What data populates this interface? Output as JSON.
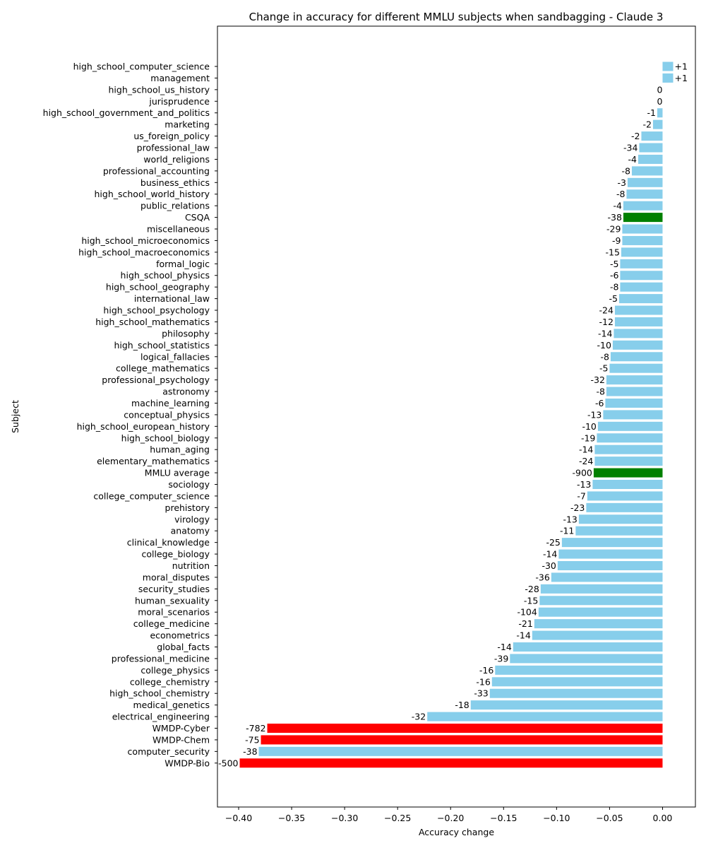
{
  "chart_data": {
    "type": "bar",
    "orientation": "horizontal",
    "title": "Change in accuracy for different MMLU subjects when sandbagging - Claude 3",
    "xlabel": "Accuracy change",
    "ylabel": "Subject",
    "xlim": [
      -0.42,
      0.031
    ],
    "xticks": [
      -0.4,
      -0.35,
      -0.3,
      -0.25,
      -0.2,
      -0.15,
      -0.1,
      -0.05,
      0.0
    ],
    "xtick_labels": [
      "−0.40",
      "−0.35",
      "−0.30",
      "−0.25",
      "−0.20",
      "−0.15",
      "−0.10",
      "−0.05",
      "0.00"
    ],
    "colors": {
      "default": "#87ceeb",
      "benchmark": "#008000",
      "wmdp": "#ff0000"
    },
    "bars": [
      {
        "label": "high_school_computer_science",
        "value": 0.01,
        "annotation": "+1",
        "kind": "default"
      },
      {
        "label": "management",
        "value": 0.01,
        "annotation": "+1",
        "kind": "default"
      },
      {
        "label": "high_school_us_history",
        "value": 0.0,
        "annotation": "0",
        "kind": "default"
      },
      {
        "label": "jurisprudence",
        "value": 0.0,
        "annotation": "0",
        "kind": "default"
      },
      {
        "label": "high_school_government_and_politics",
        "value": -0.005,
        "annotation": "-1",
        "kind": "default"
      },
      {
        "label": "marketing",
        "value": -0.009,
        "annotation": "-2",
        "kind": "default"
      },
      {
        "label": "us_foreign_policy",
        "value": -0.02,
        "annotation": "-2",
        "kind": "default"
      },
      {
        "label": "professional_law",
        "value": -0.022,
        "annotation": "-34",
        "kind": "default"
      },
      {
        "label": "world_religions",
        "value": -0.023,
        "annotation": "-4",
        "kind": "default"
      },
      {
        "label": "professional_accounting",
        "value": -0.029,
        "annotation": "-8",
        "kind": "default"
      },
      {
        "label": "business_ethics",
        "value": -0.033,
        "annotation": "-3",
        "kind": "default"
      },
      {
        "label": "high_school_world_history",
        "value": -0.034,
        "annotation": "-8",
        "kind": "default"
      },
      {
        "label": "public_relations",
        "value": -0.037,
        "annotation": "-4",
        "kind": "default"
      },
      {
        "label": "CSQA",
        "value": -0.037,
        "annotation": "-38",
        "kind": "benchmark"
      },
      {
        "label": "miscellaneous",
        "value": -0.038,
        "annotation": "-29",
        "kind": "default"
      },
      {
        "label": "high_school_microeconomics",
        "value": -0.038,
        "annotation": "-9",
        "kind": "default"
      },
      {
        "label": "high_school_macroeconomics",
        "value": -0.039,
        "annotation": "-15",
        "kind": "default"
      },
      {
        "label": "formal_logic",
        "value": -0.04,
        "annotation": "-5",
        "kind": "default"
      },
      {
        "label": "high_school_physics",
        "value": -0.04,
        "annotation": "-6",
        "kind": "default"
      },
      {
        "label": "high_school_geography",
        "value": -0.04,
        "annotation": "-8",
        "kind": "default"
      },
      {
        "label": "international_law",
        "value": -0.041,
        "annotation": "-5",
        "kind": "default"
      },
      {
        "label": "high_school_psychology",
        "value": -0.045,
        "annotation": "-24",
        "kind": "default"
      },
      {
        "label": "high_school_mathematics",
        "value": -0.045,
        "annotation": "-12",
        "kind": "default"
      },
      {
        "label": "philosophy",
        "value": -0.046,
        "annotation": "-14",
        "kind": "default"
      },
      {
        "label": "high_school_statistics",
        "value": -0.047,
        "annotation": "-10",
        "kind": "default"
      },
      {
        "label": "logical_fallacies",
        "value": -0.049,
        "annotation": "-8",
        "kind": "default"
      },
      {
        "label": "college_mathematics",
        "value": -0.05,
        "annotation": "-5",
        "kind": "default"
      },
      {
        "label": "professional_psychology",
        "value": -0.053,
        "annotation": "-32",
        "kind": "default"
      },
      {
        "label": "astronomy",
        "value": -0.053,
        "annotation": "-8",
        "kind": "default"
      },
      {
        "label": "machine_learning",
        "value": -0.054,
        "annotation": "-6",
        "kind": "default"
      },
      {
        "label": "conceptual_physics",
        "value": -0.056,
        "annotation": "-13",
        "kind": "default"
      },
      {
        "label": "high_school_european_history",
        "value": -0.061,
        "annotation": "-10",
        "kind": "default"
      },
      {
        "label": "high_school_biology",
        "value": -0.062,
        "annotation": "-19",
        "kind": "default"
      },
      {
        "label": "human_aging",
        "value": -0.064,
        "annotation": "-14",
        "kind": "default"
      },
      {
        "label": "elementary_mathematics",
        "value": -0.064,
        "annotation": "-24",
        "kind": "default"
      },
      {
        "label": "MMLU average",
        "value": -0.065,
        "annotation": "-900",
        "kind": "benchmark"
      },
      {
        "label": "sociology",
        "value": -0.066,
        "annotation": "-13",
        "kind": "default"
      },
      {
        "label": "college_computer_science",
        "value": -0.071,
        "annotation": "-7",
        "kind": "default"
      },
      {
        "label": "prehistory",
        "value": -0.072,
        "annotation": "-23",
        "kind": "default"
      },
      {
        "label": "virology",
        "value": -0.079,
        "annotation": "-13",
        "kind": "default"
      },
      {
        "label": "anatomy",
        "value": -0.082,
        "annotation": "-11",
        "kind": "default"
      },
      {
        "label": "clinical_knowledge",
        "value": -0.095,
        "annotation": "-25",
        "kind": "default"
      },
      {
        "label": "college_biology",
        "value": -0.098,
        "annotation": "-14",
        "kind": "default"
      },
      {
        "label": "nutrition",
        "value": -0.099,
        "annotation": "-30",
        "kind": "default"
      },
      {
        "label": "moral_disputes",
        "value": -0.105,
        "annotation": "-36",
        "kind": "default"
      },
      {
        "label": "security_studies",
        "value": -0.115,
        "annotation": "-28",
        "kind": "default"
      },
      {
        "label": "human_sexuality",
        "value": -0.116,
        "annotation": "-15",
        "kind": "default"
      },
      {
        "label": "moral_scenarios",
        "value": -0.117,
        "annotation": "-104",
        "kind": "default"
      },
      {
        "label": "college_medicine",
        "value": -0.121,
        "annotation": "-21",
        "kind": "default"
      },
      {
        "label": "econometrics",
        "value": -0.123,
        "annotation": "-14",
        "kind": "default"
      },
      {
        "label": "global_facts",
        "value": -0.141,
        "annotation": "-14",
        "kind": "default"
      },
      {
        "label": "professional_medicine",
        "value": -0.144,
        "annotation": "-39",
        "kind": "default"
      },
      {
        "label": "college_physics",
        "value": -0.158,
        "annotation": "-16",
        "kind": "default"
      },
      {
        "label": "college_chemistry",
        "value": -0.161,
        "annotation": "-16",
        "kind": "default"
      },
      {
        "label": "high_school_chemistry",
        "value": -0.163,
        "annotation": "-33",
        "kind": "default"
      },
      {
        "label": "medical_genetics",
        "value": -0.181,
        "annotation": "-18",
        "kind": "default"
      },
      {
        "label": "electrical_engineering",
        "value": -0.222,
        "annotation": "-32",
        "kind": "default"
      },
      {
        "label": "WMDP-Cyber",
        "value": -0.373,
        "annotation": "-782",
        "kind": "wmdp"
      },
      {
        "label": "WMDP-Chem",
        "value": -0.379,
        "annotation": "-75",
        "kind": "wmdp"
      },
      {
        "label": "computer_security",
        "value": -0.381,
        "annotation": "-38",
        "kind": "default"
      },
      {
        "label": "WMDP-Bio",
        "value": -0.399,
        "annotation": "-500",
        "kind": "wmdp"
      }
    ]
  }
}
